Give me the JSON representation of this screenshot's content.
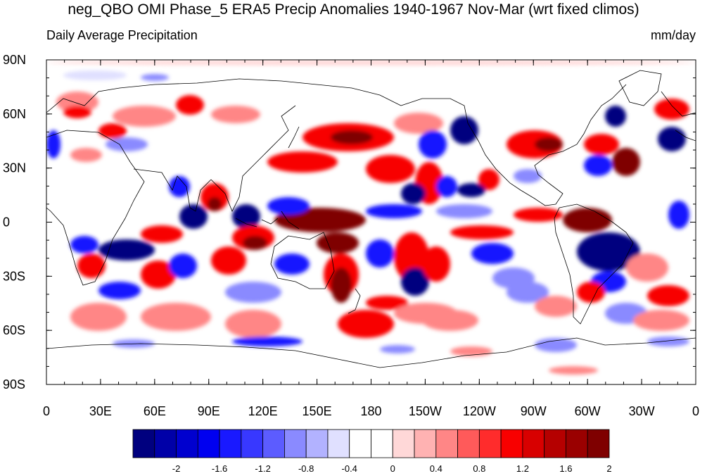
{
  "title": "neg_QBO OMI Phase_5 ERA5 Precip Anomalies 1940-1967 Nov-Mar (wrt fixed climos)",
  "subtitle": "Daily Average Precipitation",
  "units": "mm/day",
  "lat_labels": [
    "90N",
    "60N",
    "30N",
    "0",
    "30S",
    "60S",
    "90S"
  ],
  "lon_labels": [
    "0",
    "30E",
    "60E",
    "90E",
    "120E",
    "150E",
    "180",
    "150W",
    "120W",
    "90W",
    "60W",
    "30W",
    "0"
  ],
  "colorbar": {
    "colors": [
      "#00007f",
      "#0000a8",
      "#0000cf",
      "#0000f0",
      "#1919ff",
      "#3838ff",
      "#5c5cff",
      "#8a8aff",
      "#b2b2ff",
      "#e0e0ff",
      "#ffffff",
      "#ffffff",
      "#ffd8d8",
      "#ffb2b2",
      "#ff8686",
      "#ff5a5a",
      "#ff2c2c",
      "#f80000",
      "#d80000",
      "#b50000",
      "#9a0000",
      "#7f0000"
    ],
    "labels": [
      "-2",
      "-1.6",
      "-1.2",
      "-0.8",
      "-0.4",
      "0",
      "0.4",
      "0.8",
      "1.2",
      "1.6",
      "2"
    ]
  },
  "map_colors": {
    "deep_blue": "#00007f",
    "blue": "#1919ff",
    "light_blue": "#8a8aff",
    "pale_blue": "#e0e0ff",
    "pale_red": "#ffd8d8",
    "light_red": "#ff8686",
    "red": "#f80000",
    "dark_red": "#7f0000"
  }
}
